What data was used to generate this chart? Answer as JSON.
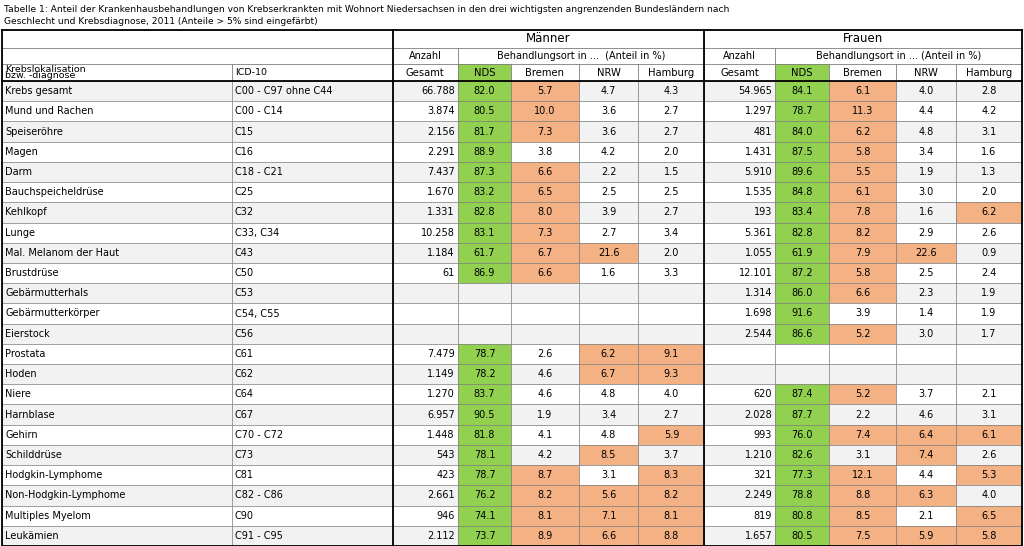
{
  "rows": [
    {
      "name": "Krebs gesamt",
      "icd": "C00 - C97 ohne C44",
      "m_ges": "66.788",
      "m_nds": 82.0,
      "m_bre": 5.7,
      "m_nrw": 4.7,
      "m_ham": 4.3,
      "f_ges": "54.965",
      "f_nds": 84.1,
      "f_bre": 6.1,
      "f_nrw": 4.0,
      "f_ham": 2.8
    },
    {
      "name": "Mund und Rachen",
      "icd": "C00 - C14",
      "m_ges": "3.874",
      "m_nds": 80.5,
      "m_bre": 10.0,
      "m_nrw": 3.6,
      "m_ham": 2.7,
      "f_ges": "1.297",
      "f_nds": 78.7,
      "f_bre": 11.3,
      "f_nrw": 4.4,
      "f_ham": 4.2
    },
    {
      "name": "Speiseröhre",
      "icd": "C15",
      "m_ges": "2.156",
      "m_nds": 81.7,
      "m_bre": 7.3,
      "m_nrw": 3.6,
      "m_ham": 2.7,
      "f_ges": "481",
      "f_nds": 84.0,
      "f_bre": 6.2,
      "f_nrw": 4.8,
      "f_ham": 3.1
    },
    {
      "name": "Magen",
      "icd": "C16",
      "m_ges": "2.291",
      "m_nds": 88.9,
      "m_bre": 3.8,
      "m_nrw": 4.2,
      "m_ham": 2.0,
      "f_ges": "1.431",
      "f_nds": 87.5,
      "f_bre": 5.8,
      "f_nrw": 3.4,
      "f_ham": 1.6
    },
    {
      "name": "Darm",
      "icd": "C18 - C21",
      "m_ges": "7.437",
      "m_nds": 87.3,
      "m_bre": 6.6,
      "m_nrw": 2.2,
      "m_ham": 1.5,
      "f_ges": "5.910",
      "f_nds": 89.6,
      "f_bre": 5.5,
      "f_nrw": 1.9,
      "f_ham": 1.3
    },
    {
      "name": "Bauchspeicheldrüse",
      "icd": "C25",
      "m_ges": "1.670",
      "m_nds": 83.2,
      "m_bre": 6.5,
      "m_nrw": 2.5,
      "m_ham": 2.5,
      "f_ges": "1.535",
      "f_nds": 84.8,
      "f_bre": 6.1,
      "f_nrw": 3.0,
      "f_ham": 2.0
    },
    {
      "name": "Kehlkopf",
      "icd": "C32",
      "m_ges": "1.331",
      "m_nds": 82.8,
      "m_bre": 8.0,
      "m_nrw": 3.9,
      "m_ham": 2.7,
      "f_ges": "193",
      "f_nds": 83.4,
      "f_bre": 7.8,
      "f_nrw": 1.6,
      "f_ham": 6.2
    },
    {
      "name": "Lunge",
      "icd": "C33, C34",
      "m_ges": "10.258",
      "m_nds": 83.1,
      "m_bre": 7.3,
      "m_nrw": 2.7,
      "m_ham": 3.4,
      "f_ges": "5.361",
      "f_nds": 82.8,
      "f_bre": 8.2,
      "f_nrw": 2.9,
      "f_ham": 2.6
    },
    {
      "name": "Mal. Melanom der Haut",
      "icd": "C43",
      "m_ges": "1.184",
      "m_nds": 61.7,
      "m_bre": 6.7,
      "m_nrw": 21.6,
      "m_ham": 2.0,
      "f_ges": "1.055",
      "f_nds": 61.9,
      "f_bre": 7.9,
      "f_nrw": 22.6,
      "f_ham": 0.9
    },
    {
      "name": "Brustdrüse",
      "icd": "C50",
      "m_ges": "61",
      "m_nds": 86.9,
      "m_bre": 6.6,
      "m_nrw": 1.6,
      "m_ham": 3.3,
      "f_ges": "12.101",
      "f_nds": 87.2,
      "f_bre": 5.8,
      "f_nrw": 2.5,
      "f_ham": 2.4
    },
    {
      "name": "Gebärmutterhals",
      "icd": "C53",
      "m_ges": "",
      "m_nds": null,
      "m_bre": null,
      "m_nrw": null,
      "m_ham": null,
      "f_ges": "1.314",
      "f_nds": 86.0,
      "f_bre": 6.6,
      "f_nrw": 2.3,
      "f_ham": 1.9
    },
    {
      "name": "Gebärmutterkörper",
      "icd": "C54, C55",
      "m_ges": "",
      "m_nds": null,
      "m_bre": null,
      "m_nrw": null,
      "m_ham": null,
      "f_ges": "1.698",
      "f_nds": 91.6,
      "f_bre": 3.9,
      "f_nrw": 1.4,
      "f_ham": 1.9
    },
    {
      "name": "Eierstock",
      "icd": "C56",
      "m_ges": "",
      "m_nds": null,
      "m_bre": null,
      "m_nrw": null,
      "m_ham": null,
      "f_ges": "2.544",
      "f_nds": 86.6,
      "f_bre": 5.2,
      "f_nrw": 3.0,
      "f_ham": 1.7
    },
    {
      "name": "Prostata",
      "icd": "C61",
      "m_ges": "7.479",
      "m_nds": 78.7,
      "m_bre": 2.6,
      "m_nrw": 6.2,
      "m_ham": 9.1,
      "f_ges": "",
      "f_nds": null,
      "f_bre": null,
      "f_nrw": null,
      "f_ham": null
    },
    {
      "name": "Hoden",
      "icd": "C62",
      "m_ges": "1.149",
      "m_nds": 78.2,
      "m_bre": 4.6,
      "m_nrw": 6.7,
      "m_ham": 9.3,
      "f_ges": "",
      "f_nds": null,
      "f_bre": null,
      "f_nrw": null,
      "f_ham": null
    },
    {
      "name": "Niere",
      "icd": "C64",
      "m_ges": "1.270",
      "m_nds": 83.7,
      "m_bre": 4.6,
      "m_nrw": 4.8,
      "m_ham": 4.0,
      "f_ges": "620",
      "f_nds": 87.4,
      "f_bre": 5.2,
      "f_nrw": 3.7,
      "f_ham": 2.1
    },
    {
      "name": "Harnblase",
      "icd": "C67",
      "m_ges": "6.957",
      "m_nds": 90.5,
      "m_bre": 1.9,
      "m_nrw": 3.4,
      "m_ham": 2.7,
      "f_ges": "2.028",
      "f_nds": 87.7,
      "f_bre": 2.2,
      "f_nrw": 4.6,
      "f_ham": 3.1
    },
    {
      "name": "Gehirn",
      "icd": "C70 - C72",
      "m_ges": "1.448",
      "m_nds": 81.8,
      "m_bre": 4.1,
      "m_nrw": 4.8,
      "m_ham": 5.9,
      "f_ges": "993",
      "f_nds": 76.0,
      "f_bre": 7.4,
      "f_nrw": 6.4,
      "f_ham": 6.1
    },
    {
      "name": "Schilddrüse",
      "icd": "C73",
      "m_ges": "543",
      "m_nds": 78.1,
      "m_bre": 4.2,
      "m_nrw": 8.5,
      "m_ham": 3.7,
      "f_ges": "1.210",
      "f_nds": 82.6,
      "f_bre": 3.1,
      "f_nrw": 7.4,
      "f_ham": 2.6
    },
    {
      "name": "Hodgkin-Lymphome",
      "icd": "C81",
      "m_ges": "423",
      "m_nds": 78.7,
      "m_bre": 8.7,
      "m_nrw": 3.1,
      "m_ham": 8.3,
      "f_ges": "321",
      "f_nds": 77.3,
      "f_bre": 12.1,
      "f_nrw": 4.4,
      "f_ham": 5.3
    },
    {
      "name": "Non-Hodgkin-Lymphome",
      "icd": "C82 - C86",
      "m_ges": "2.661",
      "m_nds": 76.2,
      "m_bre": 8.2,
      "m_nrw": 5.6,
      "m_ham": 8.2,
      "f_ges": "2.249",
      "f_nds": 78.8,
      "f_bre": 8.8,
      "f_nrw": 6.3,
      "f_ham": 4.0
    },
    {
      "name": "Multiples Myelom",
      "icd": "C90",
      "m_ges": "946",
      "m_nds": 74.1,
      "m_bre": 8.1,
      "m_nrw": 7.1,
      "m_ham": 8.1,
      "f_ges": "819",
      "f_nds": 80.8,
      "f_bre": 8.5,
      "f_nrw": 2.1,
      "f_ham": 6.5
    },
    {
      "name": "Leukämien",
      "icd": "C91 - C95",
      "m_ges": "2.112",
      "m_nds": 73.7,
      "m_bre": 8.9,
      "m_nrw": 6.6,
      "m_ham": 8.8,
      "f_ges": "1.657",
      "f_nds": 80.5,
      "f_bre": 7.5,
      "f_nrw": 5.9,
      "f_ham": 5.8
    }
  ],
  "color_orange": "#F4B183",
  "color_nds_green": "#92D050",
  "color_row_even": "#F2F2F2",
  "color_row_odd": "#FFFFFF",
  "threshold": 5.0,
  "title_line1": "Tabelle 1: Anteil der Krankenhausbehandlungen von Krebserkrankten mit Wohnort Niedersachsen in den drei wichtigsten angrenzenden Bundesländern nach",
  "title_line2": "Geschlecht und Krebsdiagnose, 2011 (Anteile > 5% sind eingefärbt)"
}
